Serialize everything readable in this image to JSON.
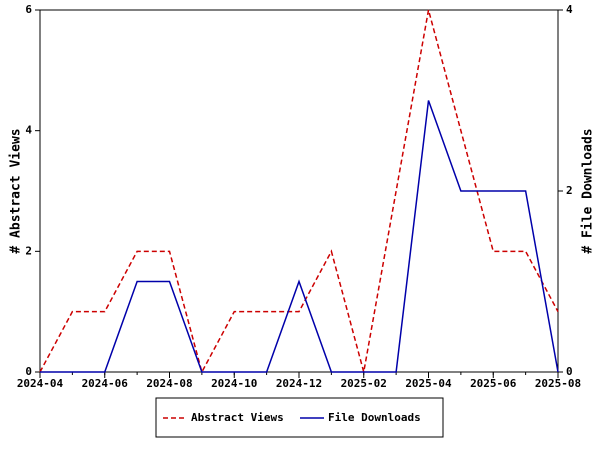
{
  "chart_data": {
    "type": "line",
    "x": [
      "2024-04",
      "2024-05",
      "2024-06",
      "2024-07",
      "2024-08",
      "2024-09",
      "2024-10",
      "2024-11",
      "2024-12",
      "2025-01",
      "2025-02",
      "2025-03",
      "2025-04",
      "2025-05",
      "2025-06",
      "2025-07",
      "2025-08"
    ],
    "xticks": [
      "2024-04",
      "2024-06",
      "2024-08",
      "2024-10",
      "2024-12",
      "2025-02",
      "2025-04",
      "2025-06",
      "2025-08"
    ],
    "y_label": "# Abstract Views",
    "y2_label": "# File Downloads",
    "ylim": [
      0,
      6
    ],
    "yticks": [
      0,
      2,
      4,
      6
    ],
    "y2lim": [
      0,
      4
    ],
    "y2ticks": [
      0,
      2,
      4
    ],
    "series": [
      {
        "name": "Abstract Views",
        "color": "#cc0000",
        "dashed": true,
        "values": [
          0,
          1,
          1,
          2,
          2,
          0,
          1,
          1,
          1,
          2,
          0,
          3,
          6,
          4,
          2,
          2,
          1
        ]
      },
      {
        "name": "File Downloads",
        "color": "#0000aa",
        "axis": "y2",
        "values": [
          0,
          0,
          0,
          1,
          1,
          0,
          0,
          0,
          1,
          0,
          0,
          0,
          3,
          2,
          2,
          2,
          0
        ]
      }
    ]
  }
}
